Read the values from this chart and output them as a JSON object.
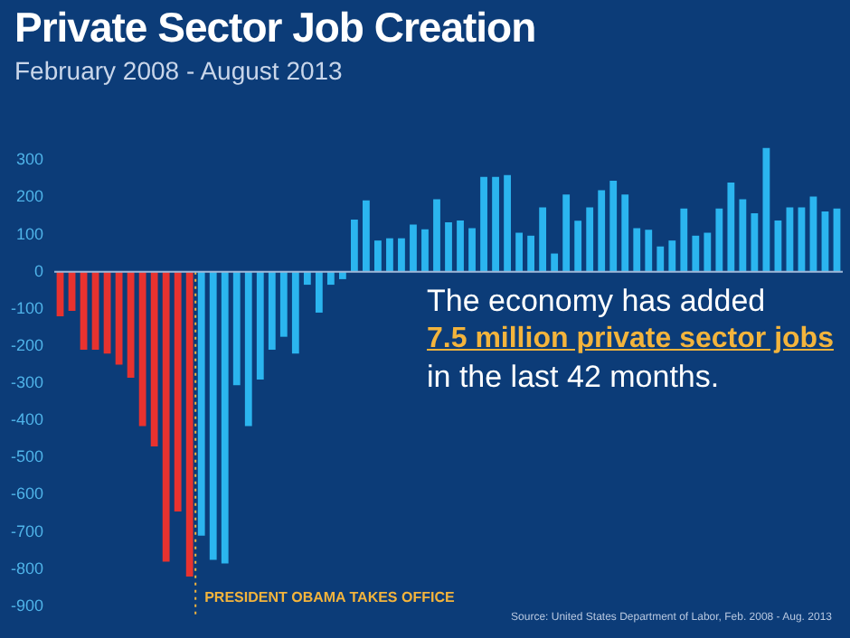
{
  "chart_data": {
    "type": "bar",
    "title": "Private Sector Job Creation",
    "subtitle": "February 2008 - August 2013",
    "categories": [
      null,
      null,
      null,
      null,
      null,
      null,
      null,
      null,
      null,
      null,
      null,
      null,
      null,
      null,
      null,
      null,
      null,
      null,
      null,
      null,
      null,
      null,
      null,
      null,
      null,
      null,
      null,
      null,
      null,
      null,
      null,
      null,
      null,
      null,
      null,
      null,
      null,
      null,
      null,
      null,
      null,
      null,
      null,
      null,
      null,
      null,
      null,
      null,
      null,
      null,
      null,
      null,
      null,
      null,
      null,
      null,
      null,
      null,
      null,
      null,
      null,
      null,
      null,
      null,
      null,
      null,
      null
    ],
    "series": [
      {
        "values": [
          -120,
          -105,
          -210,
          -210,
          -220,
          -250,
          -285,
          -415,
          -470,
          -780,
          -645,
          -820,
          -710,
          -775,
          -785,
          -305,
          -415,
          -290,
          -210,
          -175,
          -220,
          -35,
          -110,
          -35,
          -20,
          140,
          192,
          84,
          90,
          90,
          127,
          114,
          195,
          133,
          138,
          117,
          255,
          255,
          260,
          105,
          97,
          173,
          49,
          208,
          137,
          173,
          219,
          245,
          208,
          117,
          113,
          68,
          84,
          170,
          97,
          105,
          170,
          240,
          195,
          157,
          333,
          138,
          173,
          173,
          202,
          162,
          170
        ],
        "colors": [
          "#e8322f",
          "#e8322f",
          "#e8322f",
          "#e8322f",
          "#e8322f",
          "#e8322f",
          "#e8322f",
          "#e8322f",
          "#e8322f",
          "#e8322f",
          "#e8322f",
          "#e8322f",
          "#2bb5ef",
          "#2bb5ef",
          "#2bb5ef",
          "#2bb5ef",
          "#2bb5ef",
          "#2bb5ef",
          "#2bb5ef",
          "#2bb5ef",
          "#2bb5ef",
          "#2bb5ef",
          "#2bb5ef",
          "#2bb5ef",
          "#2bb5ef",
          "#2bb5ef",
          "#2bb5ef",
          "#2bb5ef",
          "#2bb5ef",
          "#2bb5ef",
          "#2bb5ef",
          "#2bb5ef",
          "#2bb5ef",
          "#2bb5ef",
          "#2bb5ef",
          "#2bb5ef",
          "#2bb5ef",
          "#2bb5ef",
          "#2bb5ef",
          "#2bb5ef",
          "#2bb5ef",
          "#2bb5ef",
          "#2bb5ef",
          "#2bb5ef",
          "#2bb5ef",
          "#2bb5ef",
          "#2bb5ef",
          "#2bb5ef",
          "#2bb5ef",
          "#2bb5ef",
          "#2bb5ef",
          "#2bb5ef",
          "#2bb5ef",
          "#2bb5ef",
          "#2bb5ef",
          "#2bb5ef",
          "#2bb5ef",
          "#2bb5ef",
          "#2bb5ef",
          "#2bb5ef",
          "#2bb5ef",
          "#2bb5ef",
          "#2bb5ef",
          "#2bb5ef",
          "#2bb5ef",
          "#2bb5ef",
          "#2bb5ef"
        ]
      }
    ],
    "ylim": [
      -930,
      345
    ],
    "yticks": [
      -900,
      -800,
      -700,
      -600,
      -500,
      -400,
      -300,
      -200,
      -100,
      0,
      100,
      200,
      300
    ],
    "tick_labels": "y",
    "legend": false,
    "grid": false,
    "ref_lines": [
      {
        "axis": "y",
        "value": 0,
        "color": "#9fb8d8",
        "line_style": "solid"
      }
    ],
    "annotations": [
      "PRESIDENT OBAMA TAKES OFFICE",
      "The economy has added",
      "7.5 million private sector jobs",
      "in the last 42 months.",
      "Source: United States Department of Labor, Feb. 2008 - Aug. 2013"
    ]
  }
}
